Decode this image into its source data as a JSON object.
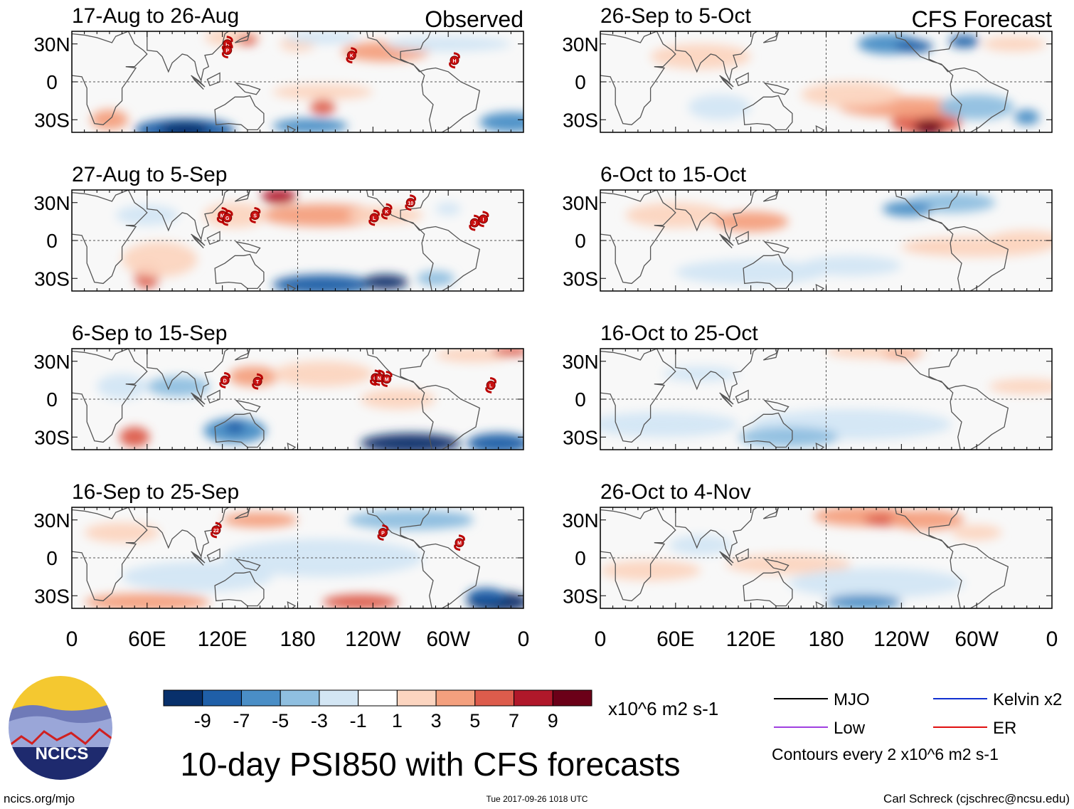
{
  "figure_title": "10-day PSI850 with CFS forecasts",
  "chart_data": {
    "type": "heatmap",
    "title": "10-day PSI850 with CFS forecasts",
    "units": "x10^6 m2 s-1",
    "contour_interval_note": "Contours every 2 x10^6 m2 s-1",
    "x_ticks": [
      "0",
      "60E",
      "120E",
      "180",
      "120W",
      "60W",
      "0"
    ],
    "y_ticks": [
      "30N",
      "0",
      "30S"
    ],
    "columns": [
      {
        "label": "Observed",
        "panels": [
          {
            "period": "17-Aug to 26-Aug",
            "storms": [
              "H",
              "P",
              "K",
              "H"
            ]
          },
          {
            "period": "27-Aug to 5-Sep",
            "storms": [
              "M",
              "G",
              "S",
              "L",
              "K",
              "10",
              "J",
              "I"
            ]
          },
          {
            "period": "6-Sep to 15-Sep",
            "storms": [
              "D",
              "T",
              "O",
              "N",
              "M",
              "L"
            ]
          },
          {
            "period": "16-Sep to 25-Sep",
            "storms": [
              "22",
              "P",
              "M"
            ]
          }
        ]
      },
      {
        "label": "CFS Forecast",
        "panels": [
          {
            "period": "26-Sep to 5-Oct",
            "storms": []
          },
          {
            "period": "6-Oct to 15-Oct",
            "storms": []
          },
          {
            "period": "16-Oct to 25-Oct",
            "storms": []
          },
          {
            "period": "26-Oct to 4-Nov",
            "storms": []
          }
        ]
      }
    ],
    "colorbar": {
      "tick_labels": [
        "-9",
        "-7",
        "-5",
        "-3",
        "-1",
        "1",
        "3",
        "5",
        "7",
        "9"
      ],
      "colors": [
        "#08306b",
        "#1f5fa8",
        "#4a8ec6",
        "#8fbfe0",
        "#d3e6f4",
        "#ffffff",
        "#fcd5c0",
        "#f4a07e",
        "#dd5c4c",
        "#b0182a",
        "#6b0018"
      ]
    },
    "legend": [
      {
        "name": "MJO",
        "color": "#000000"
      },
      {
        "name": "Kelvin x2",
        "color": "#1030d0"
      },
      {
        "name": "Low",
        "color": "#a040e0"
      },
      {
        "name": "ER",
        "color": "#e01010"
      }
    ]
  },
  "logo_text": "NCICS",
  "footer": {
    "website": "ncics.org/mjo",
    "timestamp": "Tue 2017-09-26 1018 UTC",
    "author": "Carl Schreck (cjschrec@ncsu.edu)"
  }
}
